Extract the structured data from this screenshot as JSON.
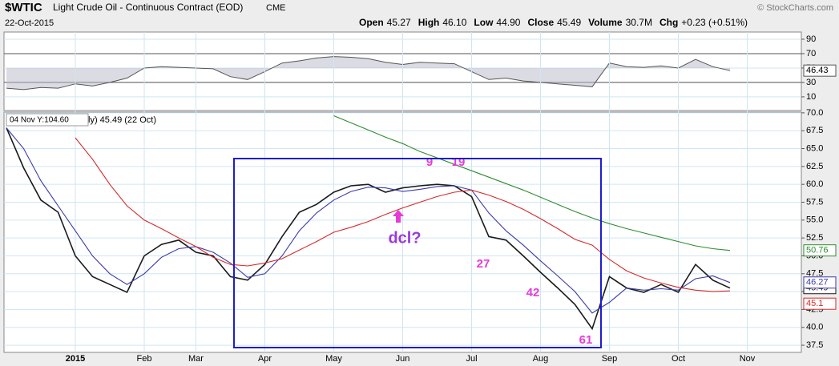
{
  "chart_data": [
    {
      "type": "line",
      "name": "RSI",
      "values": [
        22,
        20,
        23,
        22,
        28,
        25,
        30,
        36,
        50,
        52,
        51,
        50,
        49,
        38,
        34,
        45,
        57,
        60,
        64,
        66,
        65,
        63,
        58,
        55,
        58,
        57,
        56,
        45,
        34,
        36,
        32,
        30,
        28,
        26,
        24,
        57,
        52,
        51,
        53,
        50,
        62,
        52,
        46.43
      ],
      "color": "#555555",
      "ylim": [
        -9,
        100
      ],
      "yticks": [
        10,
        30,
        50,
        70,
        90
      ],
      "bands": [
        30,
        70
      ],
      "grid": true
    },
    {
      "type": "line",
      "title": "$WTIC",
      "subtitle": "Light Crude Oil - Continuous Contract (EOD)",
      "exchange": "CME",
      "date": "22-Oct-2015",
      "credit": "© StockCharts.com",
      "quote": [
        {
          "label": "Open",
          "text": "45.27"
        },
        {
          "label": "High",
          "text": "46.10"
        },
        {
          "label": "Low",
          "text": "44.90"
        },
        {
          "label": "Close",
          "text": "45.49"
        },
        {
          "label": "Volume",
          "text": "30.7M"
        },
        {
          "label": "Chg",
          "text": "+0.23 (+0.51%)"
        }
      ],
      "legend_text": "ly) 45.49 (22 Oct)",
      "tooltip": "04 Nov Y:104.60",
      "categories": [
        null,
        null,
        null,
        null,
        "2015",
        null,
        null,
        null,
        "Feb",
        null,
        null,
        "Mar",
        null,
        null,
        null,
        "Apr",
        null,
        null,
        null,
        "May",
        null,
        null,
        null,
        "Jun",
        null,
        null,
        null,
        "Jul",
        null,
        null,
        null,
        "Aug",
        null,
        null,
        null,
        "Sep",
        null,
        null,
        null,
        "Oct",
        null,
        null,
        null,
        "Nov"
      ],
      "series": [
        {
          "name": "Price",
          "color": "#1a1a1a",
          "values": [
            67.9,
            62.3,
            57.8,
            56.1,
            50,
            47.1,
            46,
            44.9,
            50,
            51.6,
            52.2,
            50.5,
            50,
            47.1,
            46.6,
            48.8,
            52.7,
            56.1,
            57.2,
            58.9,
            59.8,
            60,
            58.9,
            59.5,
            59.8,
            60,
            59.8,
            58.3,
            52.7,
            52.2,
            50,
            47.7,
            45.5,
            43.2,
            39.8,
            47.1,
            45.5,
            44.9,
            46,
            44.9,
            48.8,
            46.6,
            45.49,
            null
          ]
        },
        {
          "name": "MA short",
          "color": "#3a3aa8",
          "values": [
            67.9,
            65,
            60.5,
            57,
            53.5,
            50,
            47.5,
            46,
            47.5,
            49.8,
            51,
            51.3,
            50.5,
            49,
            47,
            47.5,
            50,
            53.5,
            56,
            57.8,
            59,
            59.6,
            59.5,
            59,
            59.3,
            59.7,
            59.8,
            59.2,
            56,
            53.5,
            51.5,
            49.3,
            47.2,
            45,
            42,
            43.5,
            45.5,
            45.2,
            45.4,
            45.2,
            46.8,
            47.2,
            46.27,
            null
          ]
        },
        {
          "name": "MA mid",
          "color": "#d62a2a",
          "values": [
            null,
            null,
            null,
            null,
            66.5,
            63.5,
            60,
            57,
            55,
            53.8,
            52.5,
            51.3,
            49.8,
            48.8,
            48.6,
            49,
            49.6,
            50.8,
            52,
            53.3,
            54,
            54.8,
            55.8,
            56.7,
            57.5,
            58.3,
            58.9,
            59.2,
            58.5,
            57.6,
            56.5,
            55.2,
            53.8,
            52.3,
            51.5,
            49.5,
            47.9,
            46.9,
            46.2,
            45.6,
            45.2,
            45,
            45.1,
            null
          ]
        },
        {
          "name": "MA long",
          "color": "#2e8b2e",
          "values": [
            null,
            null,
            null,
            null,
            null,
            null,
            null,
            null,
            null,
            null,
            null,
            null,
            null,
            null,
            null,
            null,
            null,
            null,
            null,
            69.6,
            68.6,
            67.6,
            66.6,
            65.7,
            64.6,
            63.7,
            62.8,
            61.9,
            61,
            60.1,
            59.2,
            58.2,
            57.2,
            56.2,
            55.3,
            54.5,
            53.8,
            53.2,
            52.6,
            52,
            51.4,
            51,
            50.76,
            null
          ]
        }
      ],
      "ylim": [
        36.5,
        70.1
      ],
      "yticks": [
        37.5,
        {
          "value": 40,
          "label": "40.0"
        },
        42.5,
        {
          "value": 45,
          "label": "45.0"
        },
        47.5,
        {
          "value": 50,
          "label": "50.0"
        },
        52.5,
        {
          "value": 55,
          "label": "55.0"
        },
        57.5,
        {
          "value": 60,
          "label": "60.0"
        },
        62.5,
        {
          "value": 65,
          "label": "65.0"
        },
        67.5,
        {
          "value": 70,
          "label": "70.0"
        }
      ],
      "grid": true,
      "annotations": [
        {
          "text": "9",
          "color": "#e83ad8"
        },
        {
          "text": "19",
          "color": "#e83ad8"
        },
        {
          "text": "dcl?",
          "color": "#9a3ad8"
        },
        {
          "text": "27",
          "color": "#e83ad8"
        },
        {
          "text": "42",
          "color": "#e83ad8"
        },
        {
          "text": "61",
          "color": "#e83ad8"
        }
      ]
    }
  ]
}
